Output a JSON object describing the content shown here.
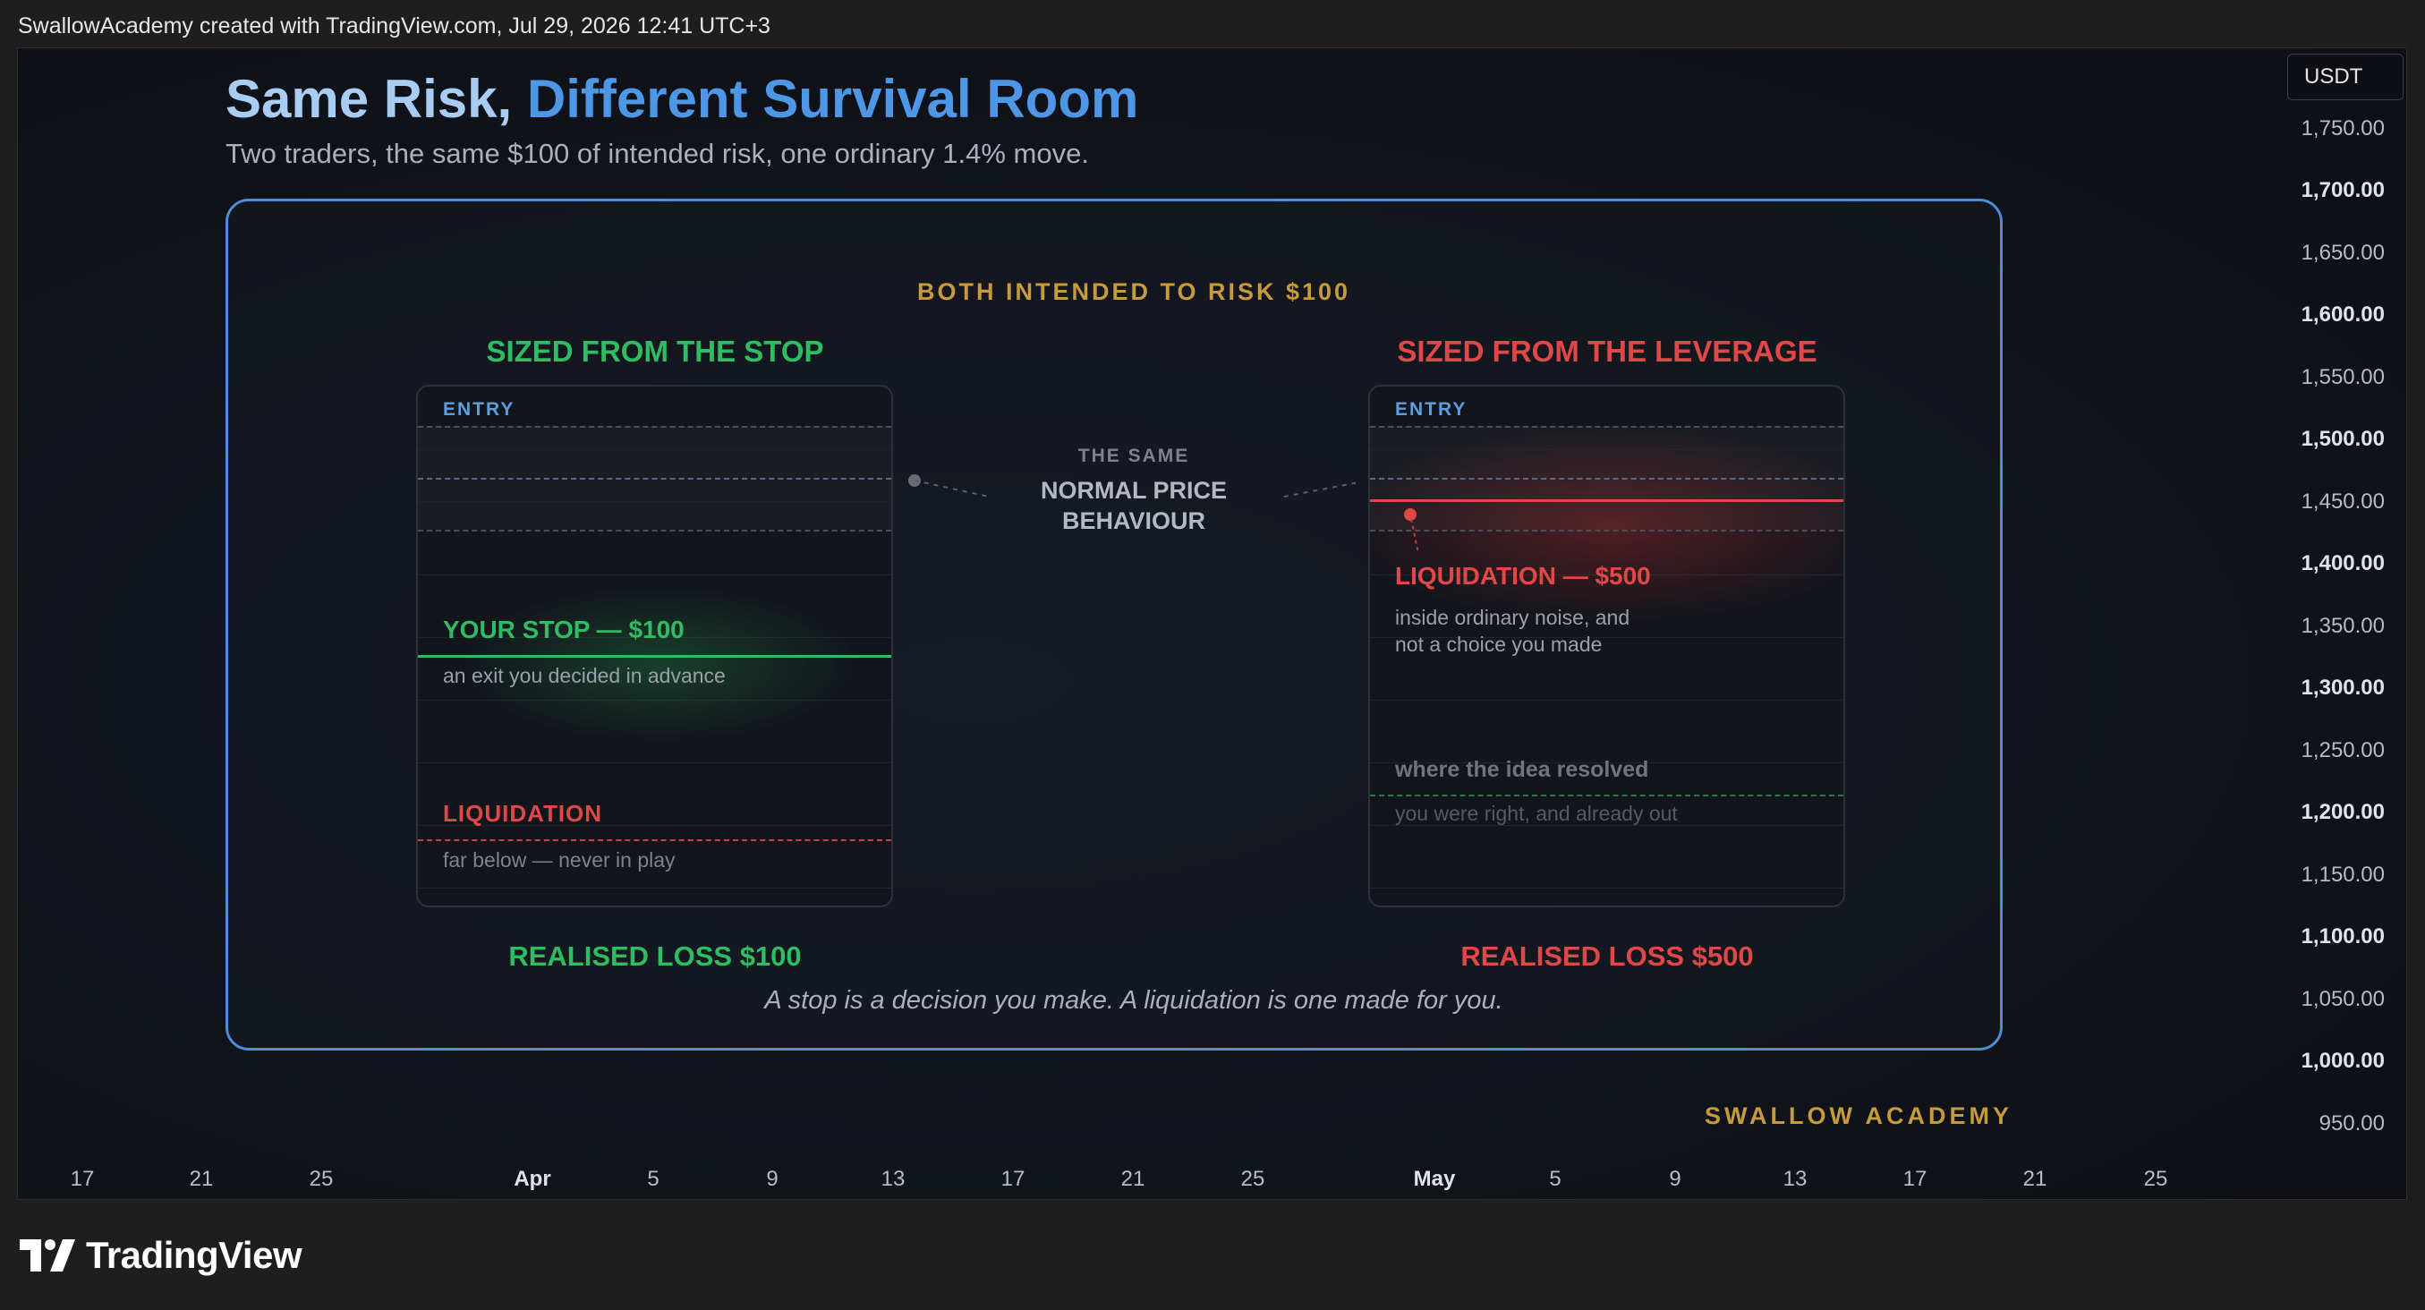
{
  "topbar": {
    "caption": "SwallowAcademy created with TradingView.com, Jul 29, 2026 12:41 UTC+3"
  },
  "footer": {
    "logo_text": "TradingView"
  },
  "colors": {
    "green": "#2fbd63",
    "red": "#e04848",
    "blue": "#4c8fd8",
    "gold": "#c79a3b"
  },
  "infographic": {
    "title_part1": "Same Risk, ",
    "title_part2": "Different Survival Room",
    "subtitle": "Two traders, the same $100 of intended risk, one ordinary 1.4% move.",
    "kicker": "BOTH INTENDED TO RISK $100",
    "left": {
      "heading": "SIZED FROM THE STOP",
      "entry_label": "ENTRY",
      "stop_label": "YOUR STOP — $100",
      "stop_note": "an exit you decided in advance",
      "liq_label": "LIQUIDATION",
      "liq_note": "far below — never in play",
      "result": "REALISED LOSS $100"
    },
    "middle": {
      "line1": "THE SAME",
      "line2": "NORMAL PRICE",
      "line3": "BEHAVIOUR"
    },
    "right": {
      "heading": "SIZED FROM THE LEVERAGE",
      "entry_label": "ENTRY",
      "liq_label": "LIQUIDATION — $500",
      "liq_note_1": "inside ordinary noise, and",
      "liq_note_2": "not a choice you made",
      "resolved_label": "where the idea resolved",
      "resolved_note": "you were right, and already out",
      "result": "REALISED LOSS $500"
    },
    "quote": "A stop is a decision you make. A liquidation is one made for you.",
    "brand": "SWALLOW ACADEMY"
  },
  "price_axis": {
    "currency": "USDT",
    "labels": [
      "1,750.00",
      "1,700.00",
      "1,650.00",
      "1,600.00",
      "1,550.00",
      "1,500.00",
      "1,450.00",
      "1,400.00",
      "1,350.00",
      "1,300.00",
      "1,250.00",
      "1,200.00",
      "1,150.00",
      "1,100.00",
      "1,050.00",
      "1,000.00",
      "950.00"
    ]
  },
  "time_axis": {
    "labels": [
      "17",
      "21",
      "25",
      "Apr",
      "5",
      "9",
      "13",
      "17",
      "21",
      "25",
      "May",
      "5",
      "9",
      "13",
      "17",
      "21",
      "25"
    ]
  }
}
